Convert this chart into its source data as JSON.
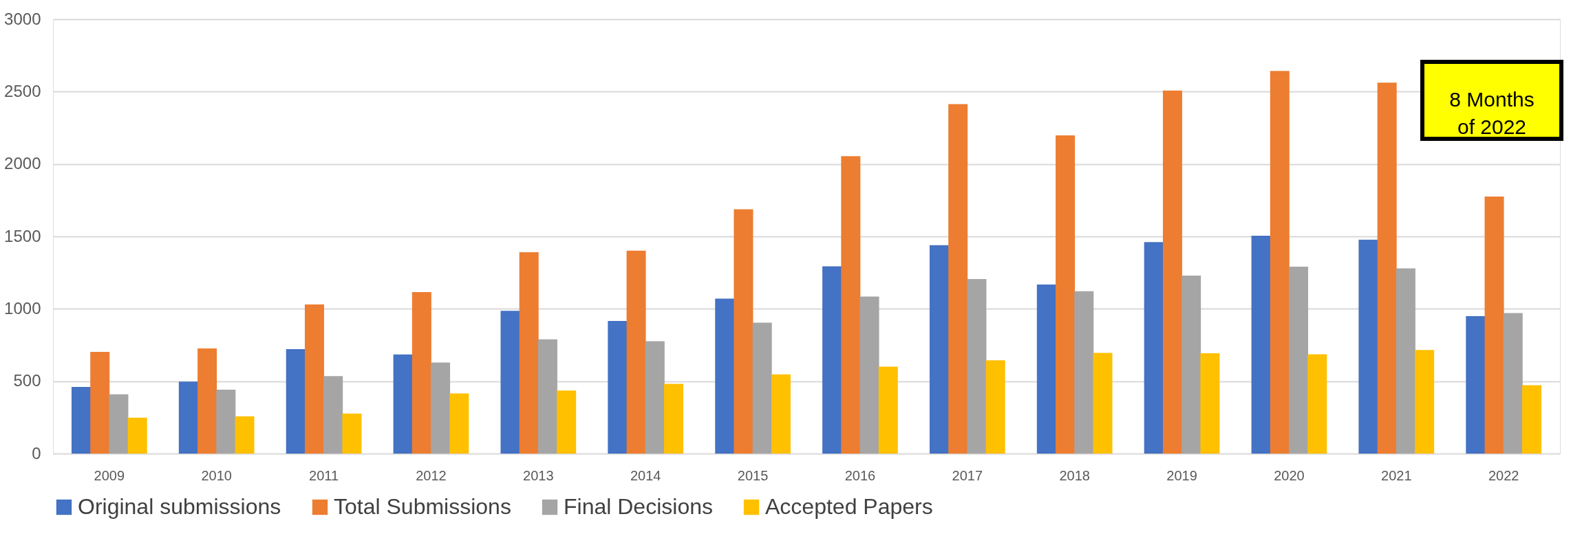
{
  "chart_data": {
    "type": "bar",
    "categories": [
      "2009",
      "2010",
      "2011",
      "2012",
      "2013",
      "2014",
      "2015",
      "2016",
      "2017",
      "2018",
      "2019",
      "2020",
      "2021",
      "2022"
    ],
    "series": [
      {
        "name": "Original submissions",
        "color": "#4472c4",
        "values": [
          461,
          497,
          721,
          685,
          986,
          916,
          1071,
          1293,
          1440,
          1168,
          1461,
          1505,
          1478,
          949
        ]
      },
      {
        "name": "Total Submissions",
        "color": "#ed7d31",
        "values": [
          702,
          726,
          1030,
          1116,
          1391,
          1401,
          1688,
          2054,
          2414,
          2198,
          2508,
          2643,
          2562,
          1775
        ]
      },
      {
        "name": "Final Decisions",
        "color": "#a5a5a5",
        "values": [
          410,
          441,
          535,
          629,
          789,
          776,
          904,
          1085,
          1206,
          1121,
          1229,
          1291,
          1279,
          971
        ]
      },
      {
        "name": "Accepted Papers",
        "color": "#ffc000",
        "values": [
          248,
          258,
          277,
          415,
          436,
          482,
          547,
          600,
          644,
          696,
          693,
          686,
          716,
          472
        ]
      }
    ],
    "ylim": [
      0,
      3000
    ],
    "yticks": [
      0,
      500,
      1000,
      1500,
      2000,
      2500,
      3000
    ],
    "grid": "y",
    "legend": "bottom",
    "annotations": [
      "8 Months\nof 2022"
    ]
  }
}
